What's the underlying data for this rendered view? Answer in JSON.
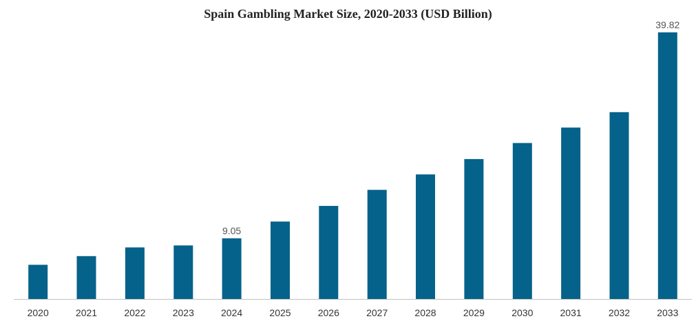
{
  "chart_data": {
    "type": "bar",
    "title": "Spain Gambling Market Size, 2020-2033 (USD Billion)",
    "xlabel": "",
    "ylabel": "",
    "categories": [
      "2020",
      "2021",
      "2022",
      "2023",
      "2024",
      "2025",
      "2026",
      "2027",
      "2028",
      "2029",
      "2030",
      "2031",
      "2032",
      "2033"
    ],
    "values": [
      5.1,
      6.4,
      7.7,
      8.0,
      9.05,
      11.57,
      13.9,
      16.3,
      18.6,
      20.9,
      23.3,
      25.6,
      27.9,
      39.82
    ],
    "data_labels": [
      {
        "category": "2024",
        "text": "9.05"
      },
      {
        "category": "2033",
        "text": "39.82"
      }
    ],
    "ylim": [
      0,
      39.82
    ],
    "grid": false,
    "legend": "none",
    "bar_color": "#05628A",
    "axis_color": "#bfbfbf"
  }
}
